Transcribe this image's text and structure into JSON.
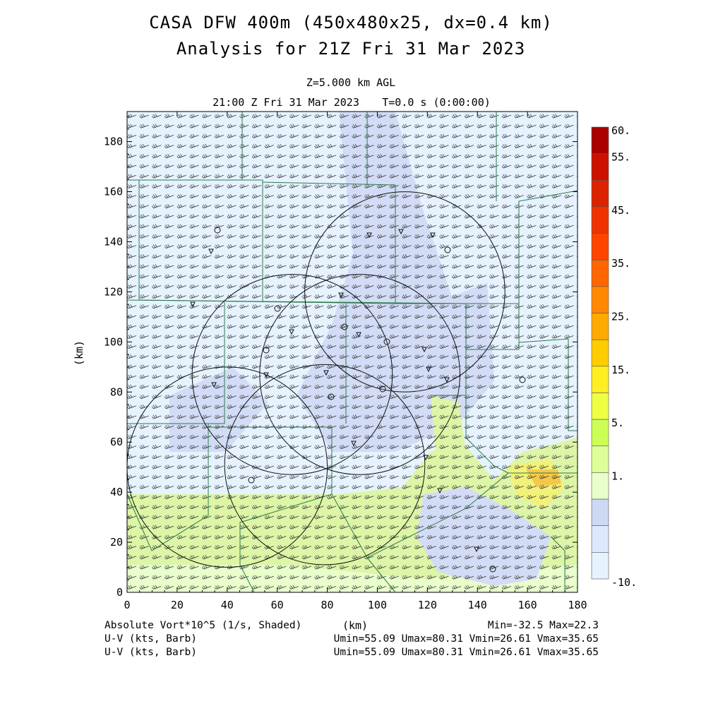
{
  "chart_data": {
    "type": "heatmap",
    "title": "CASA DFW 400m (450x480x25, dx=0.4 km)",
    "subtitle": "Analysis for 21Z Fri 31 Mar 2023",
    "level_label": "Z=5.000 km AGL",
    "time_label": "21:00 Z Fri 31 Mar 2023",
    "tstep_label": "T=0.0 s (0:00:00)",
    "xlabel": "(km)",
    "ylabel": "(km)",
    "xlim": [
      0,
      180
    ],
    "ylim": [
      0,
      192
    ],
    "x_ticks": [
      "0",
      "20",
      "40",
      "60",
      "80",
      "100",
      "120",
      "140",
      "160",
      "180"
    ],
    "y_ticks": [
      "0",
      "20",
      "40",
      "60",
      "80",
      "100",
      "120",
      "140",
      "160",
      "180"
    ],
    "colorbar": {
      "labels": [
        "60.",
        "55.",
        "45.",
        "35.",
        "25.",
        "15.",
        "5.",
        "1.",
        "-10."
      ],
      "colors": [
        "#aa0000",
        "#cc1100",
        "#dd2200",
        "#ee3300",
        "#ff4400",
        "#ff6600",
        "#ff8800",
        "#ffaa00",
        "#ffcc00",
        "#ffee22",
        "#eeff44",
        "#ccff55",
        "#ddff99",
        "#e8ffcc",
        "#ccd8f4",
        "#dde8ff",
        "#e6f3ff"
      ]
    },
    "field_label": "Absolute Vort*10^5 (1/s, Shaded)",
    "field_stats": "Min=-32.5 Max=22.3",
    "wind_label_1": "U-V (kts, Barb)",
    "wind_stats_1": "Umin=55.09 Umax=80.31 Vmin=26.61 Vmax=35.65",
    "wind_label_2": "U-V (kts, Barb)",
    "wind_stats_2": "Umin=55.09 Umax=80.31 Vmin=26.61 Vmax=35.65",
    "radars": [
      {
        "x": 93,
        "y": 87,
        "r": 40
      },
      {
        "x": 66,
        "y": 87,
        "r": 40
      },
      {
        "x": 40,
        "y": 50,
        "r": 40
      },
      {
        "x": 79,
        "y": 51,
        "r": 40
      },
      {
        "x": 111,
        "y": 120,
        "r": 40
      }
    ]
  }
}
